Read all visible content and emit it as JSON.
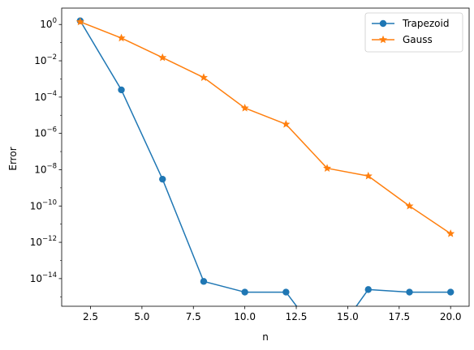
{
  "chart_data": {
    "type": "line",
    "xlabel": "n",
    "ylabel": "Error",
    "x_scale": "linear",
    "y_scale": "log",
    "xlim": [
      1.1,
      20.9
    ],
    "ylim": [
      3e-16,
      8
    ],
    "x_ticks": [
      2.5,
      5.0,
      7.5,
      10.0,
      12.5,
      15.0,
      17.5,
      20.0
    ],
    "x_tick_labels": [
      "2.5",
      "5.0",
      "7.5",
      "10.0",
      "12.5",
      "15.0",
      "17.5",
      "20.0"
    ],
    "y_ticks_exp": [
      0,
      -2,
      -4,
      -6,
      -8,
      -10,
      -12,
      -14
    ],
    "y_tick_labels": [
      "10",
      "10",
      "10",
      "10",
      "10",
      "10",
      "10",
      "10"
    ],
    "y_tick_sups": [
      "0",
      "−2",
      "−4",
      "−6",
      "−8",
      "−10",
      "−12",
      "−14"
    ],
    "legend_position": "upper-right",
    "grid": false,
    "series": [
      {
        "name": "Trapezoid",
        "color": "#1f77b4",
        "marker": "circle",
        "x": [
          2,
          4,
          6,
          8,
          10,
          12,
          14,
          16,
          18,
          20
        ],
        "y": [
          1.6,
          0.00025,
          3e-09,
          7e-15,
          1.8e-15,
          1.8e-15,
          0,
          2.5e-15,
          1.8e-15,
          1.8e-15
        ]
      },
      {
        "name": "Gauss",
        "color": "#ff7f0e",
        "marker": "star",
        "x": [
          2,
          4,
          6,
          8,
          10,
          12,
          14,
          16,
          18,
          20
        ],
        "y": [
          1.4,
          0.18,
          0.015,
          0.0012,
          2.5e-05,
          3.2e-06,
          1.2e-08,
          4.5e-09,
          1e-10,
          3e-12
        ]
      }
    ]
  }
}
